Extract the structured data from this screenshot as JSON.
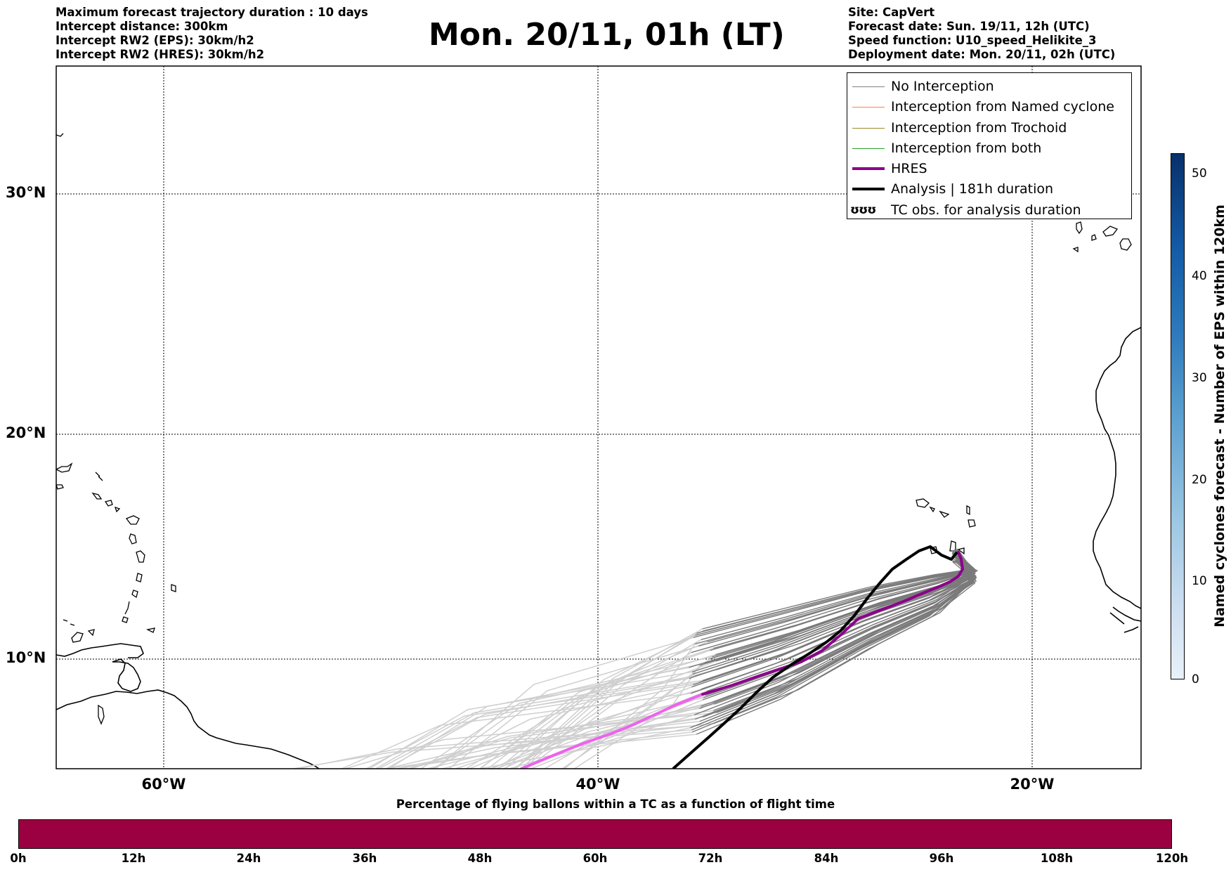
{
  "header_left": [
    "Maximum forecast trajectory duration : 10 days",
    "Intercept distance: 300km",
    "Intercept RW2 (EPS):  30km/h2",
    "Intercept RW2 (HRES): 30km/h2"
  ],
  "title": "Mon. 20/11, 01h (LT)",
  "header_right": [
    "Site: CapVert",
    "Forecast date: Sun. 19/11, 12h (UTC)",
    "Speed function: U10_speed_Helikite_3",
    "Deployment date: Mon. 20/11, 02h (UTC)"
  ],
  "map": {
    "lon_labels": [
      "60°W",
      "40°W",
      "20°W"
    ],
    "lat_labels": [
      "30°N",
      "20°N",
      "10°N"
    ],
    "colors": {
      "no_interception": "#808080",
      "named_cyclone": "#ff7f50",
      "trochoid": "#9a8a2a",
      "both": "#2ca02c",
      "hres": "#8b008b",
      "analysis": "#000000"
    }
  },
  "legend": {
    "items": [
      {
        "label": "No Interception",
        "style": "line-gray"
      },
      {
        "label": "Interception from Named cyclone",
        "style": "line-coral"
      },
      {
        "label": "Interception from Trochoid",
        "style": "line-olive"
      },
      {
        "label": "Interception from both",
        "style": "line-green"
      },
      {
        "label": "HRES",
        "style": "line-purple-thick"
      },
      {
        "label": "Analysis | 181h duration",
        "style": "line-black-thick"
      },
      {
        "label": "TC obs. for analysis duration",
        "style": "tc-symbol"
      }
    ],
    "tc_symbol": "ʊʊʊ"
  },
  "colorbar_right": {
    "label": "Named cyclones forecast - Number of EPS within 120km",
    "ticks": [
      "0",
      "10",
      "20",
      "30",
      "40",
      "50"
    ]
  },
  "colorbar_bottom": {
    "title": "Percentage of flying ballons within a TC as a function of flight time",
    "ticks": [
      "0h",
      "12h",
      "24h",
      "36h",
      "48h",
      "60h",
      "72h",
      "84h",
      "96h",
      "108h",
      "120h"
    ],
    "fill_color": "#9b0040"
  }
}
